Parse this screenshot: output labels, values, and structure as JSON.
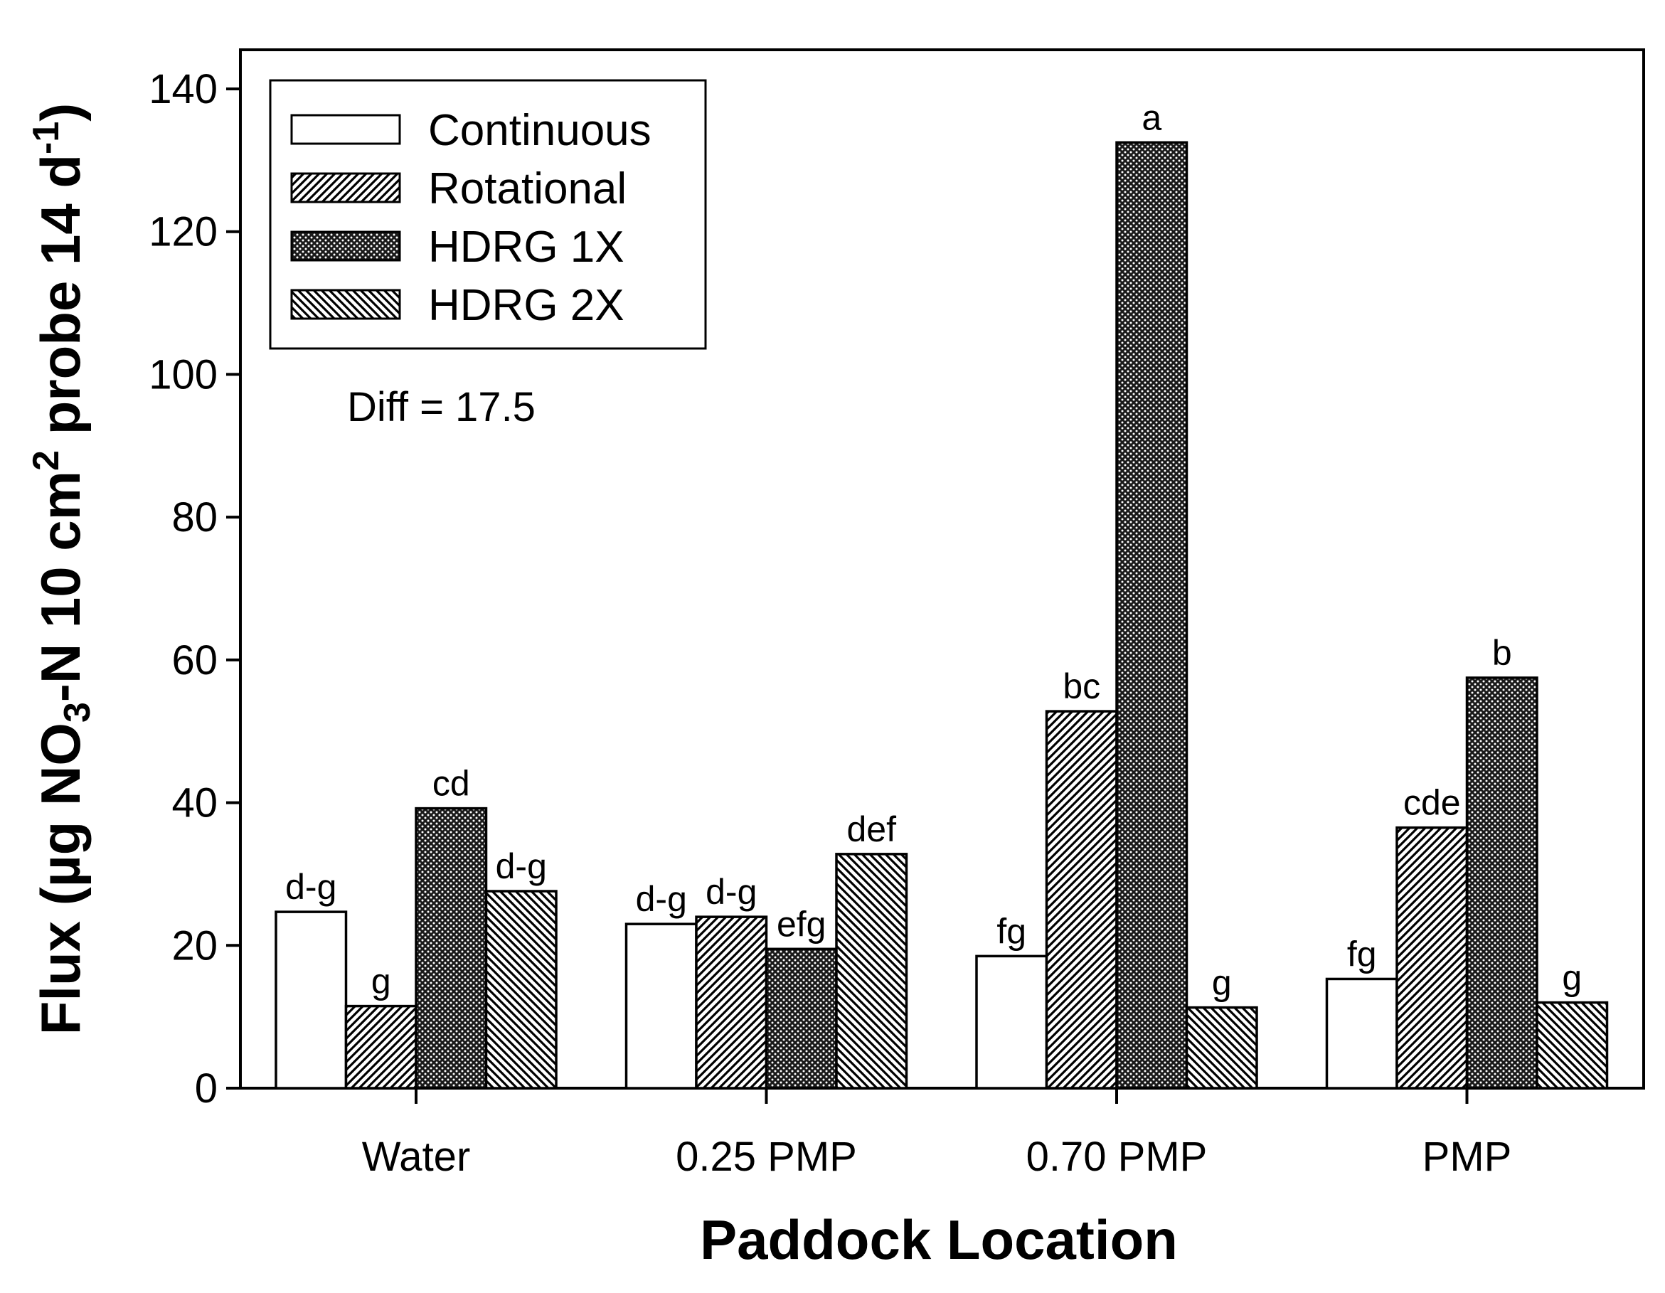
{
  "chart_data": {
    "type": "bar",
    "title": "",
    "xlabel": "Paddock Location",
    "ylabel": {
      "parts": [
        {
          "text": "Flux (µg NO",
          "shift": "normal"
        },
        {
          "text": "3",
          "shift": "sub"
        },
        {
          "text": "-N 10 cm",
          "shift": "normal"
        },
        {
          "text": "2",
          "shift": "super"
        },
        {
          "text": " probe 14 d",
          "shift": "normal"
        },
        {
          "text": "-1",
          "shift": "super"
        },
        {
          "text": ")",
          "shift": "normal"
        }
      ]
    },
    "ylim": [
      0,
      140
    ],
    "yticks": [
      0,
      20,
      40,
      60,
      80,
      100,
      120,
      140
    ],
    "categories": [
      "Water",
      "0.25 PMP",
      "0.70 PMP",
      "PMP"
    ],
    "series": [
      {
        "name": "Continuous",
        "pattern": "none",
        "values": [
          24.7,
          23.0,
          18.5,
          15.3
        ],
        "labels": [
          "d-g",
          "d-g",
          "fg",
          "fg"
        ]
      },
      {
        "name": "Rotational",
        "pattern": "diag-right",
        "values": [
          11.5,
          24.0,
          52.8,
          36.5
        ],
        "labels": [
          "g",
          "d-g",
          "bc",
          "cde"
        ]
      },
      {
        "name": "HDRG 1X",
        "pattern": "dense-cross",
        "values": [
          39.2,
          19.5,
          132.5,
          57.5
        ],
        "labels": [
          "cd",
          "efg",
          "a",
          "b"
        ]
      },
      {
        "name": "HDRG 2X",
        "pattern": "diag-left",
        "values": [
          27.6,
          32.8,
          11.3,
          12.0
        ],
        "labels": [
          "d-g",
          "def",
          "g",
          "g"
        ]
      }
    ],
    "annotation": "Diff = 17.5",
    "legend_position": "top-left",
    "grid": false,
    "colors": {
      "bar_fill": "#ffffff",
      "stroke": "#000000",
      "dense_fill": "#1a1a1a"
    }
  }
}
